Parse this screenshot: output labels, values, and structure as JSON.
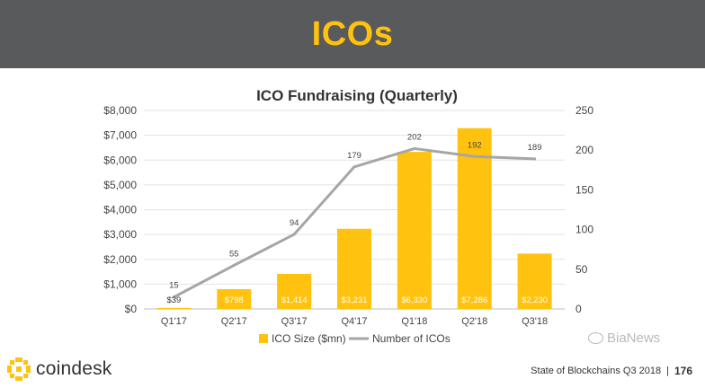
{
  "header": {
    "title": "ICOs"
  },
  "chart_data": {
    "type": "bar",
    "title": "ICO Fundraising (Quarterly)",
    "categories": [
      "Q1'17",
      "Q2'17",
      "Q3'17",
      "Q4'17",
      "Q1'18",
      "Q2'18",
      "Q3'18"
    ],
    "series": [
      {
        "name": "ICO Size ($mn)",
        "type": "bar",
        "axis": "left",
        "color": "#ffc20e",
        "values": [
          39,
          798,
          1414,
          3231,
          6330,
          7286,
          2230
        ],
        "labels": [
          "$39",
          "$798",
          "$1,414",
          "$3,231",
          "$6,330",
          "$7,286",
          "$2,230"
        ]
      },
      {
        "name": "Number of ICOs",
        "type": "line",
        "axis": "right",
        "color": "#a6a6a6",
        "values": [
          15,
          55,
          94,
          179,
          202,
          192,
          189
        ]
      }
    ],
    "y_left": {
      "ylim": [
        0,
        8000
      ],
      "ticks": [
        0,
        1000,
        2000,
        3000,
        4000,
        5000,
        6000,
        7000,
        8000
      ],
      "tick_labels": [
        "$0",
        "$1,000",
        "$2,000",
        "$3,000",
        "$4,000",
        "$5,000",
        "$6,000",
        "$7,000",
        "$8,000"
      ]
    },
    "y_right": {
      "ylim": [
        0,
        250
      ],
      "ticks": [
        0,
        50,
        100,
        150,
        200,
        250
      ],
      "tick_labels": [
        "0",
        "50",
        "100",
        "150",
        "200",
        "250"
      ]
    },
    "grid": true,
    "legend": "bottom"
  },
  "footer": {
    "brand": "coindesk",
    "report": "State of Blockchains Q3 2018",
    "separator": "|",
    "page": "176",
    "watermark": "BiaNews"
  }
}
